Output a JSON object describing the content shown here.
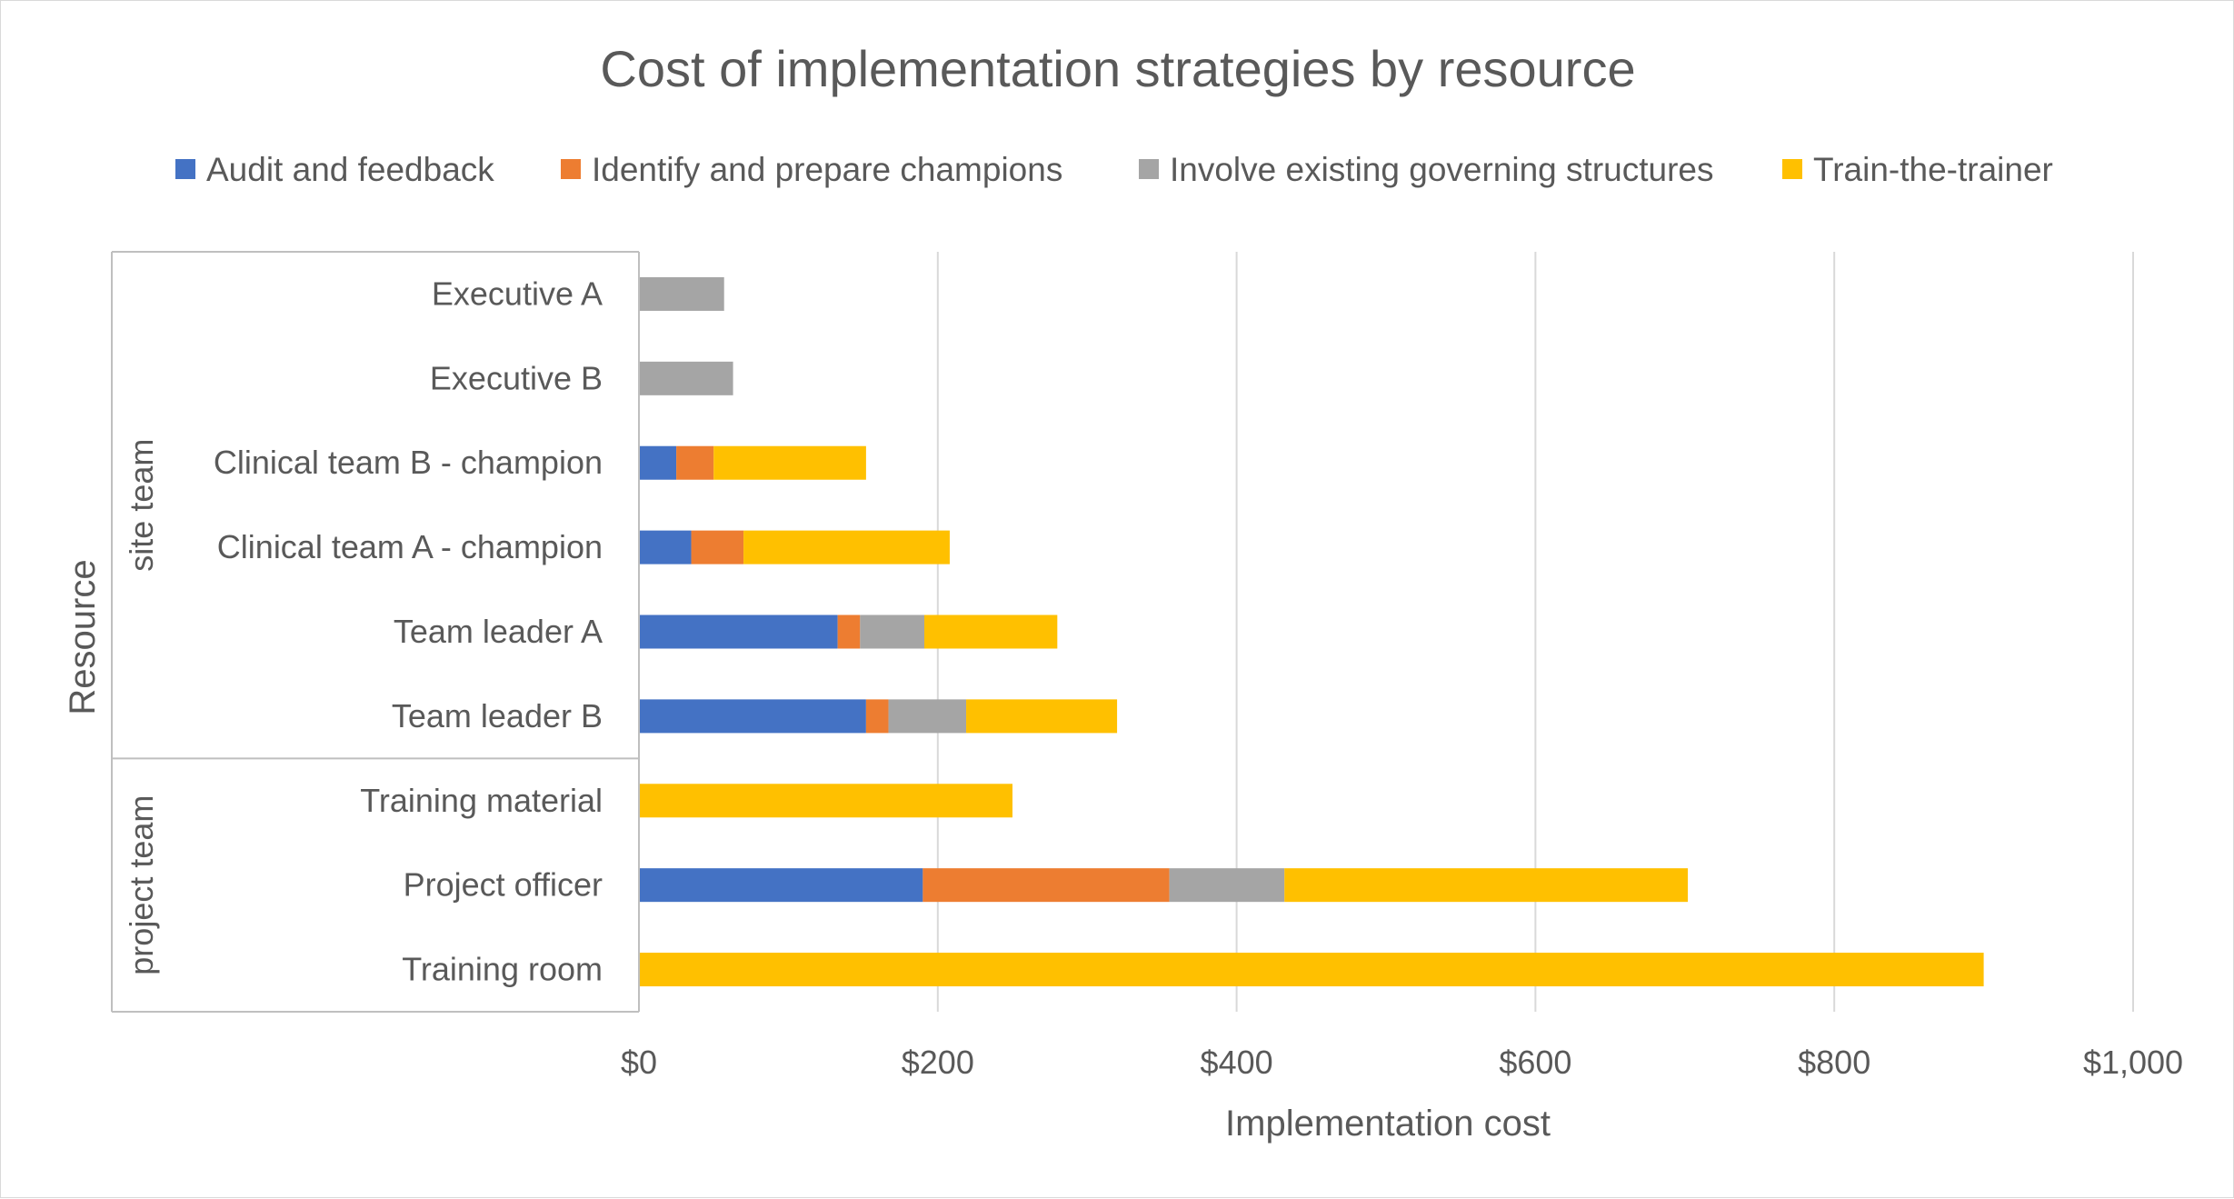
{
  "chart_data": {
    "type": "bar",
    "orientation": "horizontal",
    "stacked": true,
    "title": "Cost of implementation strategies by resource",
    "xlabel": "Implementation cost",
    "ylabel": "Resource",
    "xlim": [
      0,
      1000
    ],
    "x_ticks": [
      0,
      200,
      400,
      600,
      800,
      1000
    ],
    "x_tick_labels": [
      "$0",
      "$200",
      "$400",
      "$600",
      "$800",
      "$1,000"
    ],
    "grid": "vertical",
    "legend_position": "top",
    "groups": [
      {
        "name": "site team",
        "categories": [
          "Executive A",
          "Executive B",
          "Clinical team B - champion",
          "Clinical team A - champion",
          "Team leader A",
          "Team leader B"
        ]
      },
      {
        "name": "project team",
        "categories": [
          "Training material",
          "Project officer",
          "Training room"
        ]
      }
    ],
    "categories": [
      "Executive A",
      "Executive B",
      "Clinical team B - champion",
      "Clinical team A - champion",
      "Team leader A",
      "Team leader B",
      "Training material",
      "Project officer",
      "Training room"
    ],
    "series": [
      {
        "name": "Audit and feedback",
        "color": "#4472c4",
        "values": [
          0,
          0,
          25,
          35,
          133,
          152,
          0,
          190,
          0
        ]
      },
      {
        "name": "Identify and prepare champions",
        "color": "#ed7d31",
        "values": [
          0,
          0,
          25,
          35,
          15,
          15,
          0,
          165,
          0
        ]
      },
      {
        "name": "Involve existing governing structures",
        "color": "#a5a5a5",
        "values": [
          57,
          63,
          0,
          0,
          43,
          52,
          0,
          77,
          0
        ]
      },
      {
        "name": "Train-the-trainer",
        "color": "#ffc000",
        "values": [
          0,
          0,
          102,
          138,
          89,
          101,
          250,
          270,
          900
        ]
      }
    ]
  }
}
